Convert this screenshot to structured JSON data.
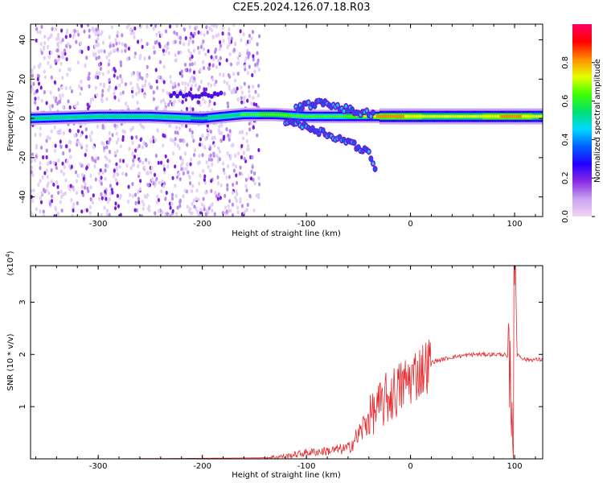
{
  "title": "C2E5.2024.126.07.18.R03",
  "colors": {
    "snr_line": "#e8262a",
    "axis": "#000000",
    "colorbar_stops": [
      "#f2d4f5",
      "#c9a5f0",
      "#8a2be2",
      "#2200ff",
      "#0060ff",
      "#00d8ff",
      "#00e070",
      "#40ff00",
      "#e8ff00",
      "#ff8c00",
      "#ff0000",
      "#ff0066"
    ]
  },
  "chart_data": [
    {
      "type": "heatmap",
      "xlabel": "Height of straight line (km)",
      "ylabel": "Frequency (Hz)",
      "xlim": [
        -365,
        127
      ],
      "ylim": [
        -50,
        48
      ],
      "xticks": [
        -300,
        -200,
        -100,
        0,
        100
      ],
      "yticks": [
        -40,
        -20,
        0,
        20,
        40
      ],
      "xtick_labels": [
        "-300",
        "-200",
        "-100",
        "0",
        "100"
      ],
      "ytick_labels": [
        "-40",
        "-20",
        "0",
        "20",
        "40"
      ],
      "colorbar": {
        "label": "Normalized spectral amplitude",
        "range": [
          0,
          1
        ],
        "ticks": [
          0.0,
          0.2,
          0.4,
          0.6,
          0.8
        ],
        "tick_labels": [
          "0.0",
          "0.2",
          "0.4",
          "0.6",
          "0.8"
        ]
      },
      "main_ridge": {
        "x": [
          -365,
          -300,
          -250,
          -200,
          -160,
          -130,
          -100,
          -70,
          -40,
          -25,
          0,
          50,
          100,
          127
        ],
        "y": [
          0,
          1,
          1,
          0,
          2,
          2,
          1,
          1,
          1,
          1,
          1,
          1,
          1,
          1
        ],
        "amplitude": [
          0.55,
          0.55,
          0.55,
          0.5,
          0.6,
          0.65,
          0.6,
          0.6,
          0.7,
          0.85,
          0.75,
          0.7,
          0.8,
          0.7
        ]
      },
      "branch_upper": {
        "x": [
          -110,
          -90,
          -70,
          -50,
          -35
        ],
        "y": [
          5,
          8,
          6,
          3,
          2
        ]
      },
      "branch_lower": {
        "x": [
          -120,
          -95,
          -75,
          -55,
          -40,
          -33
        ],
        "y": [
          -1,
          -5,
          -9,
          -13,
          -18,
          -28
        ]
      },
      "side_band": {
        "x_start": -230,
        "x_end": -180,
        "y": 12
      }
    },
    {
      "type": "line",
      "xlabel": "Height of straight line (km)",
      "ylabel": "SNR (10 * v/v)",
      "y_multiplier": "(x10",
      "y_multiplier_exp": "4",
      "y_multiplier_close": ")",
      "xlim": [
        -365,
        127
      ],
      "ylim": [
        0,
        3.7
      ],
      "xticks": [
        -300,
        -200,
        -100,
        0,
        100
      ],
      "yticks": [
        1,
        2,
        3
      ],
      "xtick_labels": [
        "-300",
        "-200",
        "-100",
        "0",
        "100"
      ],
      "ytick_labels": [
        "1",
        "2",
        "3"
      ],
      "series": [
        {
          "x": [
            -365,
            -300,
            -200,
            -140,
            -120,
            -100,
            -80,
            -60,
            -50,
            -40,
            -30,
            -20,
            -10,
            0,
            20,
            40,
            60,
            80,
            90,
            95,
            97,
            99,
            100,
            103,
            110,
            127
          ],
          "y": [
            0.0,
            0.0,
            0.01,
            0.02,
            0.05,
            0.12,
            0.15,
            0.2,
            0.45,
            0.8,
            1.0,
            1.2,
            1.35,
            1.55,
            1.85,
            1.95,
            2.0,
            2.0,
            2.0,
            1.9,
            1.2,
            0.3,
            3.5,
            2.0,
            1.9,
            1.9
          ]
        }
      ]
    }
  ]
}
